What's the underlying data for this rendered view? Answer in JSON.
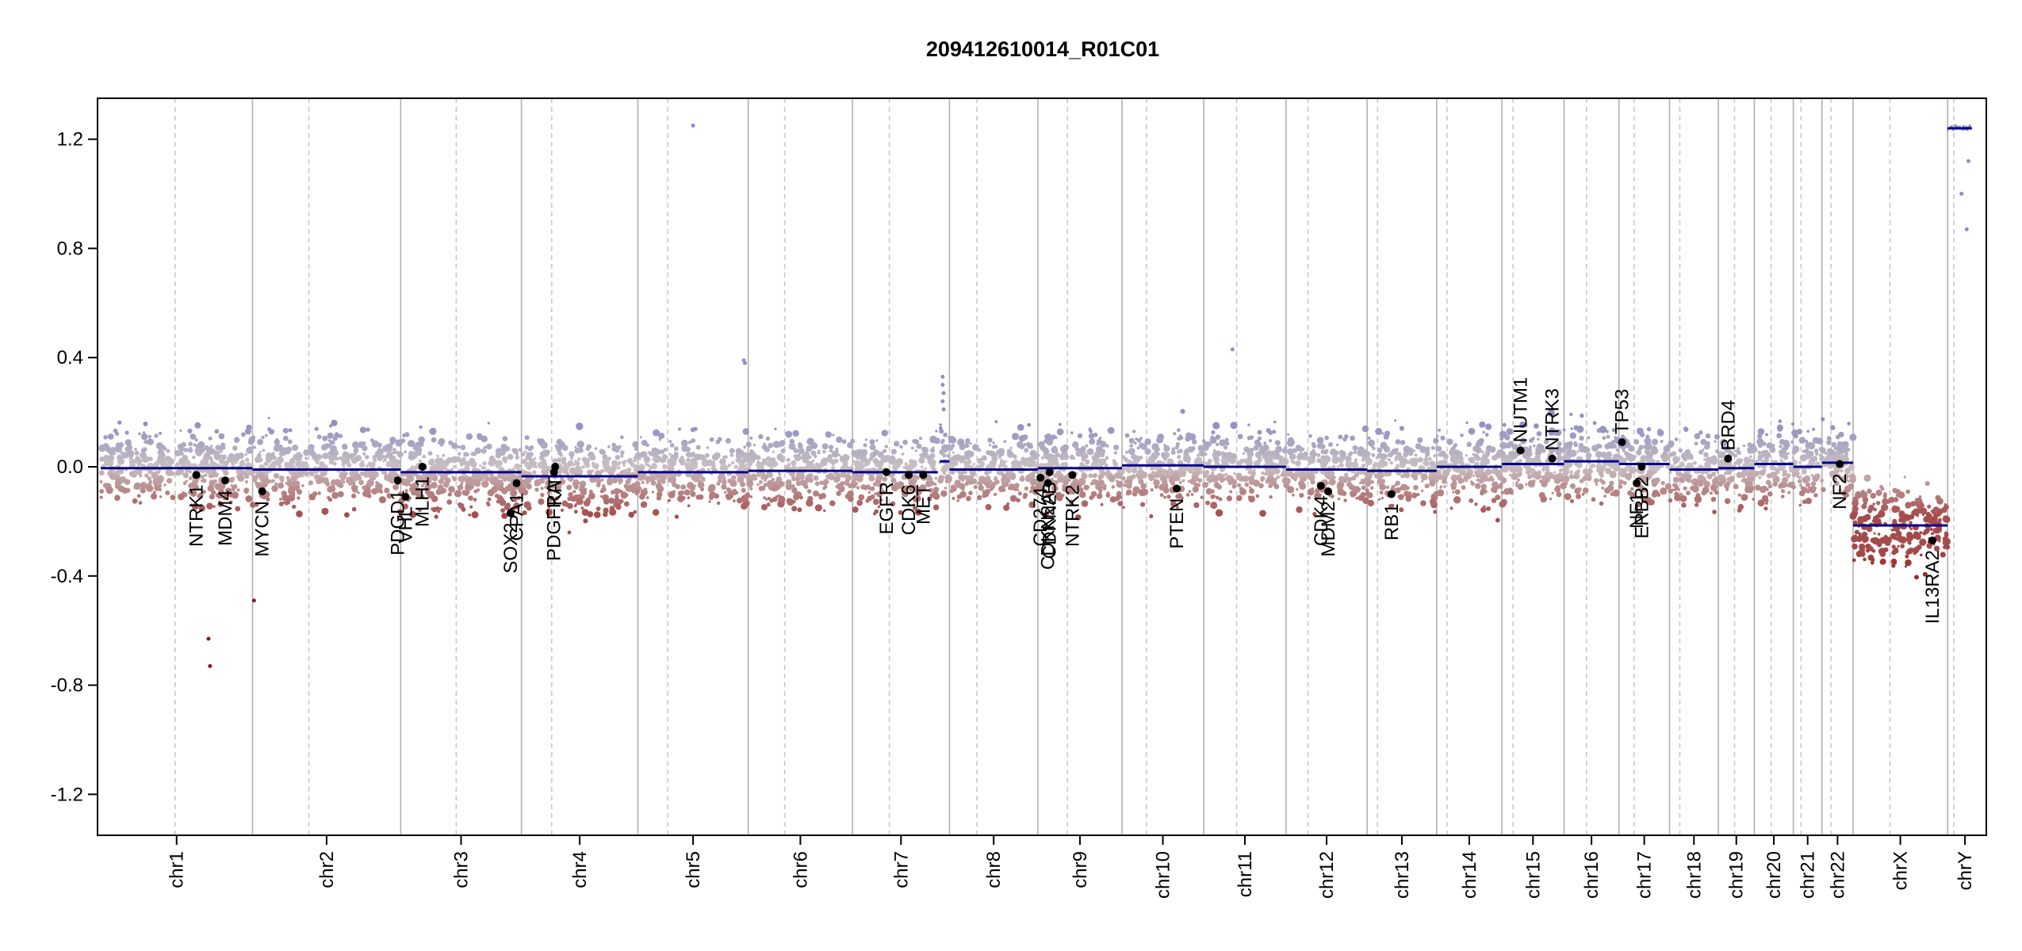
{
  "chart_data": {
    "type": "scatter",
    "title": "209412610014_R01C01",
    "xlabel": "",
    "ylabel": "",
    "ylim": [
      -1.35,
      1.35
    ],
    "yticks": [
      {
        "value": 1.2,
        "label": "1.2"
      },
      {
        "value": 0.8,
        "label": "0.8"
      },
      {
        "value": 0.4,
        "label": "0.4"
      },
      {
        "value": 0.0,
        "label": "0.0"
      },
      {
        "value": -0.4,
        "label": "-0.4"
      },
      {
        "value": -0.8,
        "label": "-0.8"
      },
      {
        "value": -1.2,
        "label": "-1.2"
      }
    ],
    "x_unit": "genomic position (relative chromosome length)",
    "chromosomes": [
      {
        "label": "chr1",
        "length": 249,
        "centromere": 0.49
      },
      {
        "label": "chr2",
        "length": 243,
        "centromere": 0.38
      },
      {
        "label": "chr3",
        "length": 198,
        "centromere": 0.46
      },
      {
        "label": "chr4",
        "length": 191,
        "centromere": 0.26
      },
      {
        "label": "chr5",
        "length": 181,
        "centromere": 0.27
      },
      {
        "label": "chr6",
        "length": 171,
        "centromere": 0.35
      },
      {
        "label": "chr7",
        "length": 159,
        "centromere": 0.38
      },
      {
        "label": "chr8",
        "length": 145,
        "centromere": 0.31
      },
      {
        "label": "chr9",
        "length": 138,
        "centromere": 0.35
      },
      {
        "label": "chr10",
        "length": 134,
        "centromere": 0.3
      },
      {
        "label": "chr11",
        "length": 135,
        "centromere": 0.4
      },
      {
        "label": "chr12",
        "length": 133,
        "centromere": 0.27
      },
      {
        "label": "chr13",
        "length": 114,
        "centromere": 0.15
      },
      {
        "label": "chr14",
        "length": 107,
        "centromere": 0.16
      },
      {
        "label": "chr15",
        "length": 102,
        "centromere": 0.18
      },
      {
        "label": "chr16",
        "length": 90,
        "centromere": 0.41
      },
      {
        "label": "chr17",
        "length": 83,
        "centromere": 0.3
      },
      {
        "label": "chr18",
        "length": 80,
        "centromere": 0.21
      },
      {
        "label": "chr19",
        "length": 59,
        "centromere": 0.45
      },
      {
        "label": "chr20",
        "length": 64,
        "centromere": 0.43
      },
      {
        "label": "chr21",
        "length": 47,
        "centromere": 0.27
      },
      {
        "label": "chr22",
        "length": 51,
        "centromere": 0.29
      },
      {
        "label": "chrX",
        "length": 155,
        "centromere": 0.39
      },
      {
        "label": "chrY",
        "length": 57,
        "centromere": 0.18
      }
    ],
    "segments": [
      {
        "chr": "chr1",
        "start": 0.0,
        "end": 1.0,
        "value": -0.005
      },
      {
        "chr": "chr2",
        "start": 0.0,
        "end": 1.0,
        "value": -0.01
      },
      {
        "chr": "chr3",
        "start": 0.0,
        "end": 1.0,
        "value": -0.02
      },
      {
        "chr": "chr4",
        "start": 0.0,
        "end": 1.0,
        "value": -0.035
      },
      {
        "chr": "chr5",
        "start": 0.0,
        "end": 1.0,
        "value": -0.02
      },
      {
        "chr": "chr6",
        "start": 0.0,
        "end": 1.0,
        "value": -0.015
      },
      {
        "chr": "chr7",
        "start": 0.0,
        "end": 0.88,
        "value": -0.02
      },
      {
        "chr": "chr7",
        "start": 0.9,
        "end": 1.0,
        "value": 0.02
      },
      {
        "chr": "chr8",
        "start": 0.0,
        "end": 1.0,
        "value": -0.01
      },
      {
        "chr": "chr9",
        "start": 0.0,
        "end": 1.0,
        "value": -0.005
      },
      {
        "chr": "chr10",
        "start": 0.0,
        "end": 1.0,
        "value": 0.005
      },
      {
        "chr": "chr11",
        "start": 0.0,
        "end": 1.0,
        "value": 0.0
      },
      {
        "chr": "chr12",
        "start": 0.0,
        "end": 1.0,
        "value": -0.01
      },
      {
        "chr": "chr13",
        "start": 0.0,
        "end": 1.0,
        "value": -0.015
      },
      {
        "chr": "chr14",
        "start": 0.0,
        "end": 1.0,
        "value": 0.0
      },
      {
        "chr": "chr15",
        "start": 0.0,
        "end": 1.0,
        "value": 0.01
      },
      {
        "chr": "chr16",
        "start": 0.0,
        "end": 1.0,
        "value": 0.02
      },
      {
        "chr": "chr17",
        "start": 0.0,
        "end": 1.0,
        "value": 0.01
      },
      {
        "chr": "chr18",
        "start": 0.0,
        "end": 1.0,
        "value": -0.01
      },
      {
        "chr": "chr19",
        "start": 0.0,
        "end": 1.0,
        "value": -0.005
      },
      {
        "chr": "chr20",
        "start": 0.0,
        "end": 1.0,
        "value": 0.01
      },
      {
        "chr": "chr21",
        "start": 0.0,
        "end": 1.0,
        "value": 0.0
      },
      {
        "chr": "chr22",
        "start": 0.0,
        "end": 1.0,
        "value": 0.015
      },
      {
        "chr": "chrX",
        "start": 0.0,
        "end": 1.0,
        "value": -0.215
      },
      {
        "chr": "chrY",
        "start": 0.0,
        "end": 0.7,
        "value": 1.24
      }
    ],
    "genes": [
      {
        "name": "NTRK1",
        "chr": "chr1",
        "pos": 0.63,
        "value": -0.03
      },
      {
        "name": "MDM4",
        "chr": "chr1",
        "pos": 0.82,
        "value": -0.05
      },
      {
        "name": "MYCN",
        "chr": "chr2",
        "pos": 0.065,
        "value": -0.09
      },
      {
        "name": "PDGD1",
        "chr": "chr2",
        "pos": 0.98,
        "value": -0.05
      },
      {
        "name": "VHL",
        "chr": "chr3",
        "pos": 0.04,
        "value": -0.11
      },
      {
        "name": "MLH1",
        "chr": "chr3",
        "pos": 0.18,
        "value": 0.0
      },
      {
        "name": "SOX2",
        "chr": "chr3",
        "pos": 0.91,
        "value": -0.17
      },
      {
        "name": "CPA1",
        "chr": "chr3",
        "pos": 0.96,
        "value": -0.06
      },
      {
        "name": "PDGFRA",
        "chr": "chr4",
        "pos": 0.28,
        "value": -0.02
      },
      {
        "name": "KIT",
        "chr": "chr4",
        "pos": 0.29,
        "value": 0.0
      },
      {
        "name": "EGFR",
        "chr": "chr7",
        "pos": 0.35,
        "value": -0.02
      },
      {
        "name": "CDK6",
        "chr": "chr7",
        "pos": 0.58,
        "value": -0.03
      },
      {
        "name": "MET",
        "chr": "chr7",
        "pos": 0.73,
        "value": -0.03
      },
      {
        "name": "CD274",
        "chr": "chr9",
        "pos": 0.03,
        "value": -0.04
      },
      {
        "name": "CDKN2A",
        "chr": "chr9",
        "pos": 0.12,
        "value": -0.06
      },
      {
        "name": "CDKN2B",
        "chr": "chr9",
        "pos": 0.14,
        "value": -0.02
      },
      {
        "name": "NTRK2",
        "chr": "chr9",
        "pos": 0.41,
        "value": -0.03
      },
      {
        "name": "PTEN",
        "chr": "chr10",
        "pos": 0.67,
        "value": -0.08
      },
      {
        "name": "CDK4",
        "chr": "chr12",
        "pos": 0.43,
        "value": -0.07
      },
      {
        "name": "MDM2",
        "chr": "chr12",
        "pos": 0.52,
        "value": -0.09
      },
      {
        "name": "RB1",
        "chr": "chr13",
        "pos": 0.35,
        "value": -0.1
      },
      {
        "name": "NUTM1",
        "chr": "chr15",
        "pos": 0.3,
        "value": 0.06
      },
      {
        "name": "NTRK3",
        "chr": "chr15",
        "pos": 0.81,
        "value": 0.03
      },
      {
        "name": "TP53",
        "chr": "chr17",
        "pos": 0.06,
        "value": 0.09
      },
      {
        "name": "NF1",
        "chr": "chr17",
        "pos": 0.35,
        "value": -0.06
      },
      {
        "name": "ERBB2",
        "chr": "chr17",
        "pos": 0.45,
        "value": 0.0
      },
      {
        "name": "BRD4",
        "chr": "chr19",
        "pos": 0.27,
        "value": 0.03
      },
      {
        "name": "NF2",
        "chr": "chr22",
        "pos": 0.57,
        "value": 0.01
      },
      {
        "name": "IL13RA2",
        "chr": "chrX",
        "pos": 0.84,
        "value": -0.27
      }
    ],
    "outliers": [
      {
        "chr": "chr1",
        "pos": 0.71,
        "value": -0.63
      },
      {
        "chr": "chr1",
        "pos": 0.72,
        "value": -0.73
      },
      {
        "chr": "chr2",
        "pos": 0.01,
        "value": -0.49
      },
      {
        "chr": "chr5",
        "pos": 0.5,
        "value": 1.25
      },
      {
        "chr": "chr5",
        "pos": 0.96,
        "value": 0.39
      },
      {
        "chr": "chr5",
        "pos": 0.97,
        "value": 0.38
      },
      {
        "chr": "chr7",
        "pos": 0.93,
        "value": 0.33
      },
      {
        "chr": "chr7",
        "pos": 0.93,
        "value": 0.3
      },
      {
        "chr": "chr7",
        "pos": 0.94,
        "value": 0.27
      },
      {
        "chr": "chr7",
        "pos": 0.93,
        "value": 0.24
      },
      {
        "chr": "chr7",
        "pos": 0.94,
        "value": 0.21
      },
      {
        "chr": "chr11",
        "pos": 0.35,
        "value": 0.43
      },
      {
        "chrY_note": "",
        "chr": "chrY",
        "pos": 0.4,
        "value": 1.0
      },
      {
        "chr": "chrY",
        "pos": 0.55,
        "value": 0.87
      },
      {
        "chr": "chrY",
        "pos": 0.6,
        "value": 1.12
      }
    ],
    "colors": {
      "segment": "#00008b",
      "gain": "#8f8fc2",
      "loss": "#a44b4b",
      "neutral": "#c9bfc2",
      "strong_loss": "#8b1a1a",
      "gene_dot": "#000000",
      "grid_chr": "#b0b0b0",
      "grid_centromere": "#c8c8c8"
    },
    "grid": true,
    "legend": "none"
  }
}
